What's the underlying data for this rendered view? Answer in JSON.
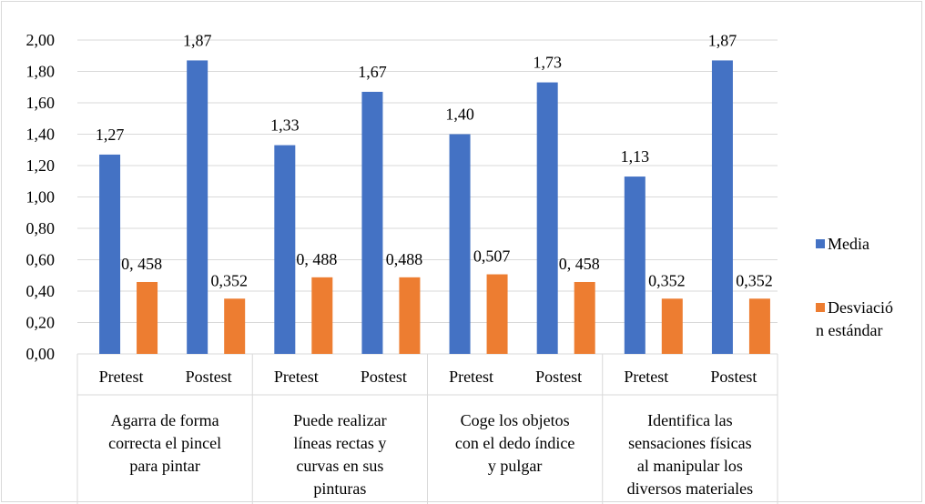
{
  "chart_data": {
    "type": "bar",
    "title": "",
    "xlabel": "",
    "ylabel": "",
    "ylim": [
      0,
      2.0
    ],
    "y_tick_labels": [
      "0,00",
      "0,20",
      "0,40",
      "0,60",
      "0,80",
      "1,00",
      "1,20",
      "1,40",
      "1,60",
      "1,80",
      "2,00"
    ],
    "grid": true,
    "legend_position": "right",
    "groups": [
      {
        "label_lines": [
          "Agarra de forma",
          "correcta el pincel",
          "para pintar"
        ],
        "categories": [
          "Pretest",
          "Postest"
        ]
      },
      {
        "label_lines": [
          "Puede realizar",
          "líneas rectas y",
          "curvas en sus",
          "pinturas"
        ],
        "categories": [
          "Pretest",
          "Postest"
        ]
      },
      {
        "label_lines": [
          "Coge los objetos",
          "con el dedo índice",
          "y pulgar"
        ],
        "categories": [
          "Pretest",
          "Postest"
        ]
      },
      {
        "label_lines": [
          "Identifica las",
          "sensaciones físicas",
          "al manipular los",
          "diversos materiales"
        ],
        "categories": [
          "Pretest",
          "Postest"
        ]
      }
    ],
    "series": [
      {
        "name": "Media",
        "color": "#4472c4",
        "values": [
          1.27,
          1.87,
          1.33,
          1.67,
          1.4,
          1.73,
          1.13,
          1.87
        ],
        "labels": [
          "1,27",
          "1,87",
          "1,33",
          "1,67",
          "1,40",
          "1,73",
          "1,13",
          "1,87"
        ]
      },
      {
        "name": "Desviación estándar",
        "name_lines": [
          "Desviació",
          "n estándar"
        ],
        "color": "#ed7d31",
        "values": [
          0.458,
          0.352,
          0.488,
          0.488,
          0.507,
          0.458,
          0.352,
          0.352
        ],
        "labels": [
          "0,  458",
          "0,352",
          "0,  488",
          "0,488",
          "0,507",
          "0,  458",
          "0,352",
          "0,352"
        ]
      }
    ]
  }
}
